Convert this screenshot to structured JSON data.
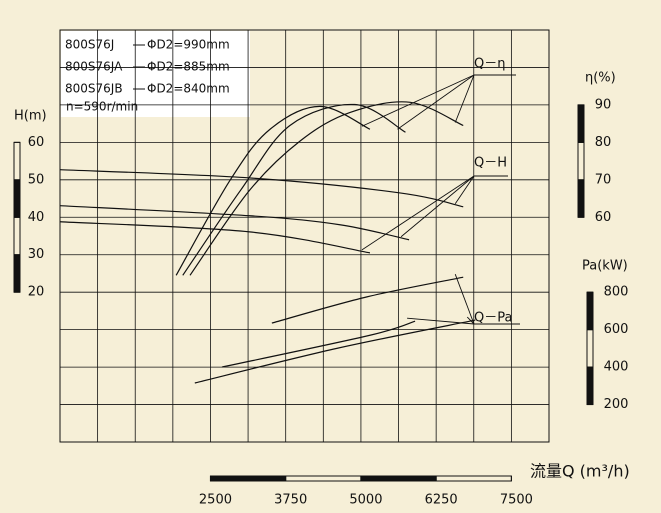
{
  "chart_data": {
    "type": "line",
    "xlabel": "流量Q (m³/h)",
    "xlim": [
      0,
      8125
    ],
    "xticks": [
      2500,
      3750,
      5000,
      6250,
      7500
    ],
    "ylabel": "H(m)",
    "ylim": [
      -20,
      90
    ],
    "yticks": [
      20,
      30,
      40,
      50,
      60
    ],
    "y2label": "η(%)",
    "y2lim": [
      0,
      110
    ],
    "y2ticks": [
      60,
      70,
      80,
      90
    ],
    "y3label": "Pa(kW)",
    "y3lim": [
      0,
      2200
    ],
    "y3ticks": [
      200,
      400,
      600,
      800
    ],
    "speed": "n=590r/min",
    "curve_labels": {
      "eta": "Q－η",
      "H": "Q－H",
      "Pa": "Q－Pa"
    },
    "color": "#111111",
    "pumps": [
      {
        "name": "800S76J",
        "impeller": "ΦD2=990mm",
        "H": {
          "x": [
            0,
            3150,
            5650,
            6700
          ],
          "values": [
            52.7,
            50.5,
            46.5,
            42.8
          ]
        },
        "eta": {
          "x": [
            2160,
            3150,
            4000,
            4820,
            5820,
            6700
          ],
          "values": [
            44.5,
            67.2,
            80.5,
            88,
            90.7,
            84.5
          ]
        },
        "Pa": {
          "x": [
            3520,
            5100,
            6700
          ],
          "values": [
            635,
            775,
            880
          ]
        }
      },
      {
        "name": "800S76JA",
        "impeller": "ΦD2=885mm",
        "H": {
          "x": [
            0,
            3150,
            4650,
            5800
          ],
          "values": [
            43.1,
            40.4,
            38,
            34
          ]
        },
        "eta": {
          "x": [
            2040,
            3000,
            3820,
            4900,
            5740
          ],
          "values": [
            44.5,
            67.2,
            84.5,
            90.1,
            82.7
          ]
        },
        "Pa": {
          "x": [
            2690,
            5150,
            5900
          ],
          "values": [
            400,
            570,
            645
          ]
        }
      },
      {
        "name": "800S76JB",
        "impeller": "ΦD2=840mm",
        "H": {
          "x": [
            0,
            3150,
            5150
          ],
          "values": [
            38.8,
            36.1,
            30.5
          ]
        },
        "eta": {
          "x": [
            1930,
            2830,
            3490,
            4320,
            5150
          ],
          "values": [
            44.5,
            70,
            83.5,
            89.6,
            83.5
          ]
        },
        "Pa": {
          "x": [
            2240,
            4600,
            6900
          ],
          "values": [
            315,
            500,
            651
          ]
        }
      }
    ]
  }
}
